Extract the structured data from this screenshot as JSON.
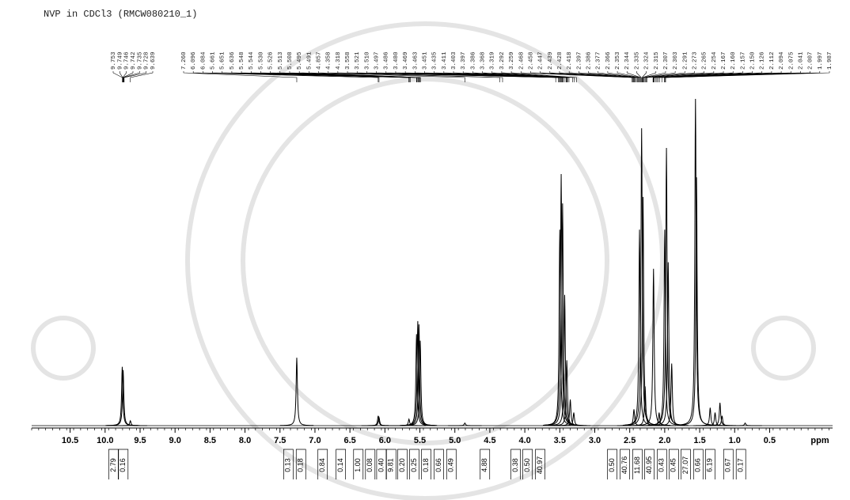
{
  "chart_data": {
    "type": "nmr",
    "title": "NVP in CDCl3 (RMCW080210_1)",
    "x_label": "ppm",
    "xlim": [
      11.05,
      -0.4
    ],
    "xticks": [
      10.5,
      10.0,
      9.5,
      9.0,
      8.5,
      8.0,
      7.5,
      7.0,
      6.5,
      6.0,
      5.5,
      5.0,
      4.5,
      4.0,
      3.5,
      3.0,
      2.5,
      2.0,
      1.5,
      1.0,
      0.5
    ],
    "ylim": [
      0,
      100
    ],
    "color": "#000000",
    "x": [
      9.755,
      9.742,
      9.639,
      7.26,
      6.096,
      6.084,
      5.656,
      5.548,
      5.53,
      5.513,
      5.495,
      4.857,
      3.5,
      3.48,
      3.46,
      3.43,
      3.4,
      3.35,
      3.3,
      2.44,
      2.36,
      2.33,
      2.31,
      2.28,
      2.16,
      2.08,
      2.0,
      1.975,
      1.95,
      1.9,
      1.56,
      1.545,
      1.35,
      1.28,
      1.21,
      1.18,
      0.85
    ],
    "values": [
      18,
      17,
      1.5,
      20.8,
      3,
      2.5,
      2,
      28,
      32,
      31,
      26,
      0.8,
      60,
      77,
      68,
      40,
      20,
      8,
      4,
      5,
      60,
      91,
      70,
      12,
      48,
      4,
      60,
      85,
      50,
      19,
      100,
      76,
      5.5,
      4,
      7,
      3,
      0.8
    ],
    "peak_labels": [
      [
        9.753,
        9.749,
        9.746,
        9.742,
        9.735,
        9.728,
        9.639
      ],
      [
        {
          "value": 7.26,
          "label": "7.260"
        },
        6.096,
        6.084,
        5.661,
        5.651,
        5.636,
        5.548,
        5.544,
        {
          "value": 5.53,
          "label": "5.530"
        },
        5.526,
        5.513,
        5.508,
        5.495,
        5.491,
        4.857,
        4.358,
        4.318,
        3.558,
        3.521,
        {
          "value": 3.51,
          "label": "3.510"
        },
        3.497,
        3.486,
        {
          "value": 3.48,
          "label": "3.480"
        },
        3.469,
        3.463,
        3.451,
        3.435,
        3.411,
        3.403,
        3.397,
        3.386,
        3.368,
        3.319,
        3.292,
        3.259,
        2.468,
        2.458,
        2.447,
        2.439,
        2.428,
        2.418,
        2.397,
        2.386,
        2.377,
        2.366,
        2.353,
        2.344,
        2.335,
        2.324,
        2.315,
        2.307,
        2.303,
        2.291,
        2.273,
        2.265,
        2.254,
        2.167,
        {
          "value": 2.16,
          "label": "2.160"
        },
        2.157,
        {
          "value": 2.15,
          "label": "2.150"
        },
        2.126,
        2.112,
        2.094,
        2.075,
        2.041,
        2.007,
        1.997,
        1.987
      ]
    ],
    "integrals": [
      2.79,
      0.16,
      0.13,
      0.18,
      0.84,
      0.14,
      {
        "value": 1,
        "label": "1.00"
      },
      0.08,
      {
        "value": 0.4,
        "label": "0.40"
      },
      9.81,
      {
        "value": 0.2,
        "label": "0.20"
      },
      0.25,
      0.18,
      0.66,
      0.49,
      4.88,
      0.38,
      {
        "value": 0.5,
        "label": "0.50"
      },
      40.97,
      {
        "value": 0.5,
        "label": "0.50"
      },
      40.76,
      11.68,
      40.95,
      0.43,
      0.45,
      27.07,
      0.66,
      6.19,
      0.67,
      0.17
    ],
    "integral_ppm": [
      9.88,
      9.74,
      7.38,
      7.2,
      6.89,
      6.63,
      6.38,
      6.21,
      6.05,
      5.91,
      5.75,
      5.58,
      5.41,
      5.23,
      5.05,
      4.57,
      4.13,
      3.96,
      3.78,
      2.75,
      2.57,
      2.39,
      2.22,
      2.04,
      1.87,
      1.7,
      1.52,
      1.35,
      1.09,
      0.91
    ]
  }
}
